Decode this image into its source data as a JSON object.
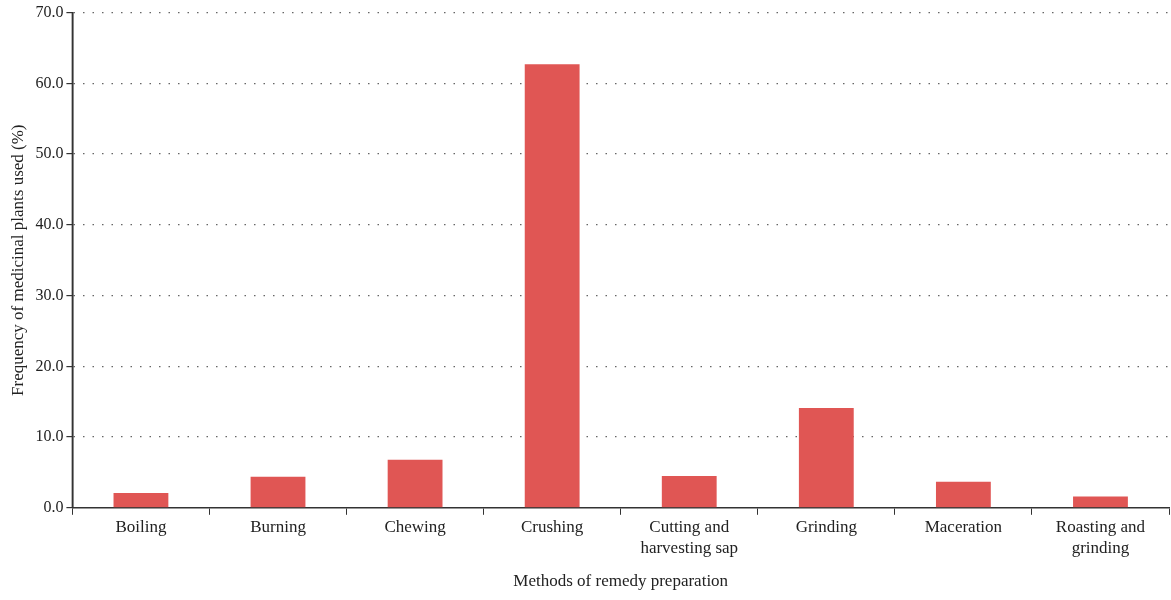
{
  "chart_data": {
    "type": "bar",
    "xlabel": "Methods of remedy preparation",
    "ylabel": "Frequency of medicinal plants used (%)",
    "categories": [
      "Boiling",
      "Burning",
      "Chewing",
      "Crushing",
      "Cutting and harvesting sap",
      "Grinding",
      "Maceration",
      "Roasting and grinding"
    ],
    "values": [
      2.1,
      4.4,
      6.8,
      62.7,
      4.5,
      14.1,
      3.7,
      1.6
    ],
    "color": "#e05654",
    "ylim": [
      0,
      70
    ],
    "yticks": [
      {
        "value": 0,
        "label": "0.0"
      },
      {
        "value": 10,
        "label": "10.0"
      },
      {
        "value": 20,
        "label": "20.0"
      },
      {
        "value": 30,
        "label": "30.0"
      },
      {
        "value": 40,
        "label": "40.0"
      },
      {
        "value": 50,
        "label": "50.0"
      },
      {
        "value": 60,
        "label": "60.0"
      },
      {
        "value": 70,
        "label": "70.0"
      }
    ],
    "grid": "y",
    "legend": false
  }
}
